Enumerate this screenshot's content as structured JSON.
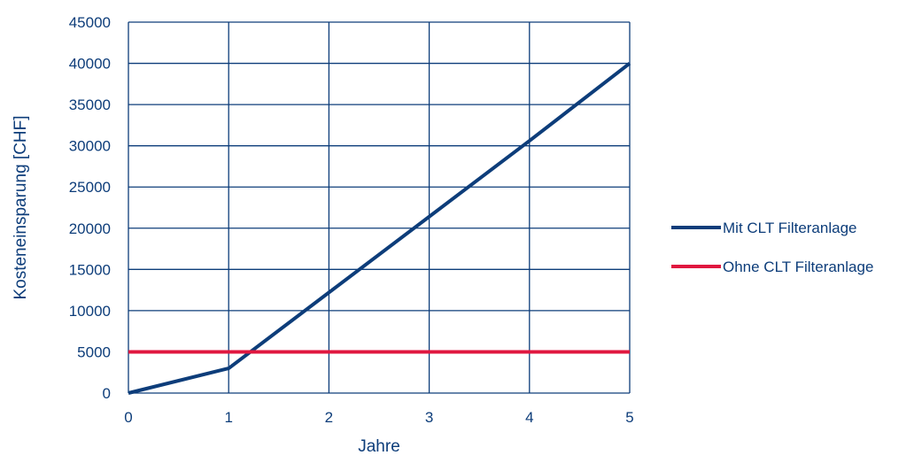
{
  "chart_data": {
    "type": "line",
    "title": "",
    "xlabel": "Jahre",
    "ylabel": "Kosteneinsparung [CHF]",
    "x": [
      0,
      1,
      2,
      3,
      4,
      5
    ],
    "xlim": [
      0,
      5
    ],
    "ylim": [
      0,
      45000
    ],
    "xticks": [
      "0",
      "1",
      "2",
      "3",
      "4",
      "5"
    ],
    "yticks": [
      "0",
      "5000",
      "10000",
      "15000",
      "20000",
      "25000",
      "30000",
      "35000",
      "40000",
      "45000"
    ],
    "grid": true,
    "legend_position": "right",
    "series": [
      {
        "name": "Mit CLT Filteranlage",
        "color": "#0d3d7a",
        "values": [
          0,
          3000,
          12200,
          21400,
          30600,
          40000
        ]
      },
      {
        "name": "Ohne CLT Filteranlage",
        "color": "#e0173f",
        "values": [
          5000,
          5000,
          5000,
          5000,
          5000,
          5000
        ]
      }
    ],
    "text_color": "#0d3d7a",
    "grid_color": "#0d3d7a"
  }
}
